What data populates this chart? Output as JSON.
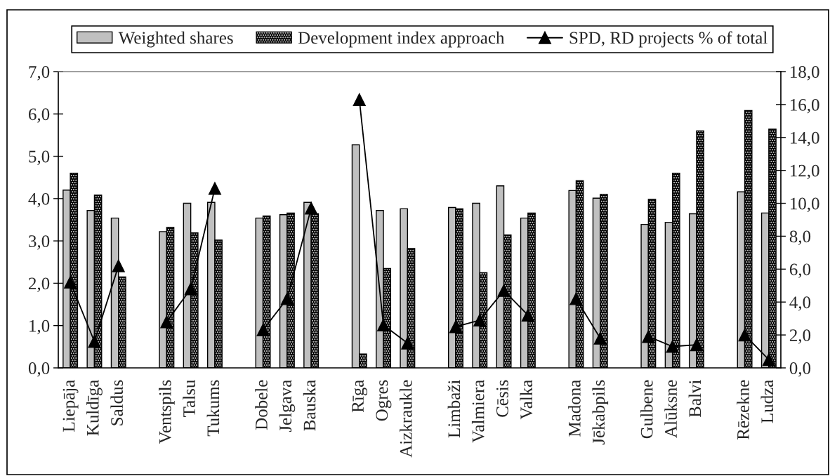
{
  "chart_data": {
    "type": "bar",
    "categories": [
      "Liepāja",
      "Kuldīga",
      "Saldus",
      null,
      "Ventspils",
      "Talsu",
      "Tukums",
      null,
      "Dobele",
      "Jelgava",
      "Bauska",
      null,
      "Rīga",
      "Ogres",
      "Aizkraukle",
      null,
      "Limbaži",
      "Valmiera",
      "Cēsis",
      "Valka",
      null,
      "Madona",
      "Jēkabpils",
      null,
      "Gulbene",
      "Alūksne",
      "Balvi",
      null,
      "Rēzekne",
      "Ludza"
    ],
    "series": [
      {
        "name": "Weighted shares",
        "color": "#c0c0c0",
        "values": [
          4.2,
          3.72,
          3.54,
          null,
          3.22,
          3.89,
          3.91,
          null,
          3.54,
          3.62,
          3.91,
          null,
          5.27,
          3.72,
          3.76,
          null,
          3.79,
          3.89,
          4.3,
          3.54,
          null,
          4.19,
          4.01,
          null,
          3.39,
          3.44,
          3.64,
          null,
          4.16,
          3.66
        ]
      },
      {
        "name": "Development index approach",
        "color": "#000000",
        "values": [
          4.6,
          4.08,
          2.15,
          null,
          3.32,
          3.19,
          3.02,
          null,
          3.59,
          3.66,
          3.64,
          null,
          0.33,
          2.35,
          2.82,
          null,
          3.76,
          2.25,
          3.14,
          3.66,
          null,
          4.42,
          4.1,
          null,
          3.98,
          4.6,
          5.6,
          null,
          6.08,
          5.64
        ]
      },
      {
        "name": "SPD, RD projects % of total",
        "type": "line",
        "axis": "y2",
        "color": "#000000",
        "marker": "triangle",
        "line_style": "solid",
        "values": [
          5.2,
          1.6,
          6.2,
          null,
          2.8,
          4.8,
          10.9,
          null,
          2.3,
          4.2,
          9.7,
          null,
          16.3,
          2.6,
          1.5,
          null,
          2.5,
          2.9,
          4.7,
          3.2,
          null,
          4.2,
          1.8,
          null,
          1.9,
          1.3,
          1.4,
          null,
          2.0,
          0.5
        ]
      }
    ],
    "ylim": [
      0,
      7
    ],
    "yticks": [
      {
        "value": 0,
        "label": "0,0"
      },
      {
        "value": 1,
        "label": "1,0"
      },
      {
        "value": 2,
        "label": "2,0"
      },
      {
        "value": 3,
        "label": "3,0"
      },
      {
        "value": 4,
        "label": "4,0"
      },
      {
        "value": 5,
        "label": "5,0"
      },
      {
        "value": 6,
        "label": "6,0"
      },
      {
        "value": 7,
        "label": "7,0"
      }
    ],
    "y2lim": [
      0,
      18
    ],
    "y2ticks": [
      {
        "value": 0,
        "label": "0,0"
      },
      {
        "value": 2,
        "label": "2,0"
      },
      {
        "value": 4,
        "label": "4,0"
      },
      {
        "value": 6,
        "label": "6,0"
      },
      {
        "value": 8,
        "label": "8,0"
      },
      {
        "value": 10,
        "label": "10,0"
      },
      {
        "value": 12,
        "label": "12,0"
      },
      {
        "value": 14,
        "label": "14,0"
      },
      {
        "value": 16,
        "label": "16,0"
      },
      {
        "value": 18,
        "label": "18,0"
      }
    ],
    "legend": "top"
  }
}
